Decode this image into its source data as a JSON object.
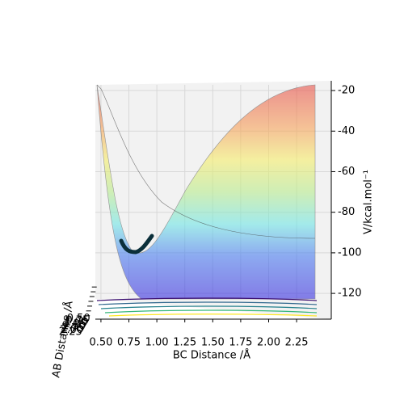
{
  "chart_data": {
    "type": "surface3d",
    "xlabel": "BC Distance /Å",
    "ylabel": "AB Distance /Å",
    "zlabel": "V/kcal.mol⁻¹",
    "xlim": [
      0.45,
      2.56
    ],
    "xticks": [
      {
        "value": 0.5,
        "label": "0.50"
      },
      {
        "value": 0.75,
        "label": "0.75"
      },
      {
        "value": 1.0,
        "label": "1.00"
      },
      {
        "value": 1.25,
        "label": "1.25"
      },
      {
        "value": 1.5,
        "label": "1.50"
      },
      {
        "value": 1.75,
        "label": "1.75"
      },
      {
        "value": 2.0,
        "label": "2.00"
      },
      {
        "value": 2.25,
        "label": "2.25"
      }
    ],
    "ylim": [
      0.45,
      2.56
    ],
    "yticks": [
      {
        "value": 0.5,
        "label": "0.50"
      },
      {
        "value": 0.75,
        "label": "0.75"
      },
      {
        "value": 1.0,
        "label": "1.00"
      },
      {
        "value": 1.25,
        "label": "1.25"
      },
      {
        "value": 1.5,
        "label": "1.50"
      },
      {
        "value": 1.75,
        "label": "1.75"
      },
      {
        "value": 2.0,
        "label": "2.00"
      },
      {
        "value": 2.25,
        "label": "2.25"
      }
    ],
    "zlim": [
      -132.7,
      -15.2
    ],
    "zticks": [
      -20,
      -40,
      -60,
      -80,
      -100,
      -120
    ],
    "grid": true
  }
}
